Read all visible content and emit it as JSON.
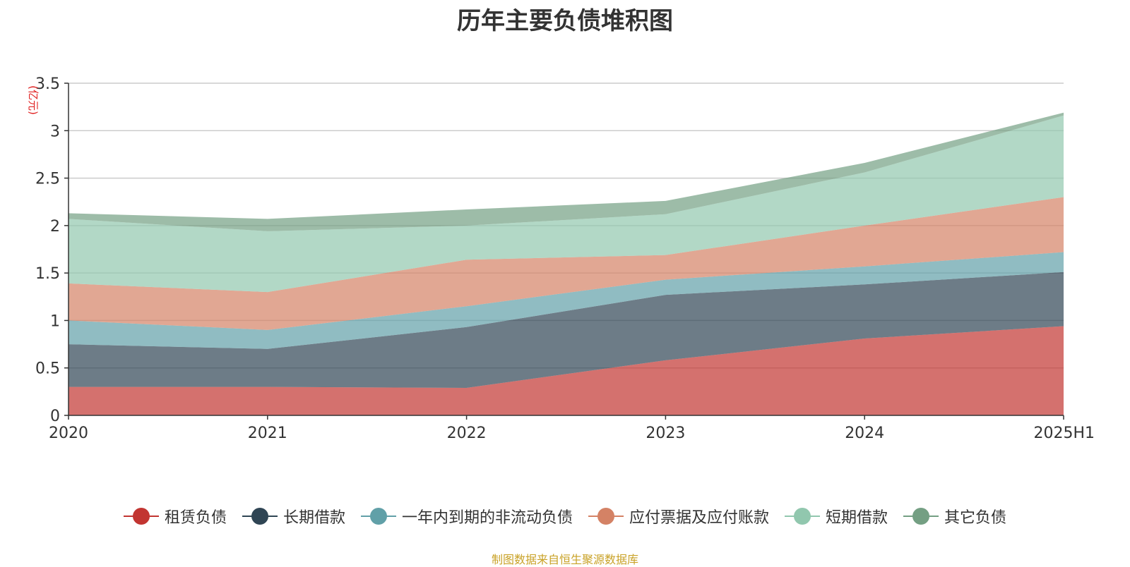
{
  "chart_data": {
    "type": "area",
    "stacked": true,
    "title": "历年主要负债堆积图",
    "ylabel": "(亿元)",
    "xlabel": "",
    "ylim": [
      0,
      3.5
    ],
    "yticks": [
      0,
      0.5,
      1,
      1.5,
      2,
      2.5,
      3,
      3.5
    ],
    "ytick_labels": [
      "0",
      "0.5",
      "1",
      "1.5",
      "2",
      "2.5",
      "3",
      "3.5"
    ],
    "categories": [
      "2020",
      "2021",
      "2022",
      "2023",
      "2024",
      "2025H1"
    ],
    "grid": true,
    "legend_position": "bottom",
    "series": [
      {
        "name": "租赁负债",
        "color": "#c23531",
        "values": [
          0.3,
          0.3,
          0.29,
          0.58,
          0.81,
          0.94
        ]
      },
      {
        "name": "长期借款",
        "color": "#2f4554",
        "values": [
          0.45,
          0.4,
          0.64,
          0.69,
          0.57,
          0.57
        ]
      },
      {
        "name": "一年内到期的非流动负债",
        "color": "#61a0a8",
        "values": [
          0.25,
          0.2,
          0.22,
          0.16,
          0.19,
          0.21
        ]
      },
      {
        "name": "应付票据及应付账款",
        "color": "#d48265",
        "values": [
          0.39,
          0.4,
          0.49,
          0.26,
          0.43,
          0.58
        ]
      },
      {
        "name": "短期借款",
        "color": "#91c7ae",
        "values": [
          0.68,
          0.64,
          0.36,
          0.43,
          0.56,
          0.86
        ]
      },
      {
        "name": "其它负债",
        "color": "#749f83",
        "values": [
          0.06,
          0.13,
          0.17,
          0.14,
          0.1,
          0.03
        ]
      }
    ]
  },
  "source_note": "制图数据来自恒生聚源数据库"
}
